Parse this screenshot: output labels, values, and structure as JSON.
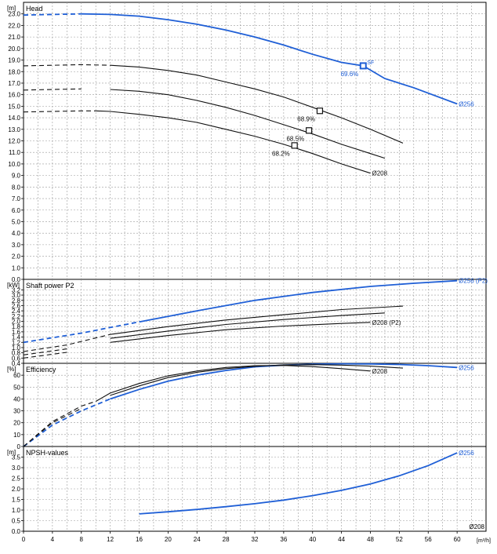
{
  "chart_data": {
    "type": "line",
    "x_axis": {
      "range": [
        0,
        64
      ],
      "ticks": [
        0,
        4,
        8,
        12,
        16,
        20,
        24,
        28,
        32,
        36,
        40,
        44,
        48,
        52,
        56,
        60
      ],
      "unit_label": "[m³/h]"
    },
    "colors": {
      "blue": "#1f5fd6",
      "black": "#111111",
      "grid": "#9a9a9a"
    },
    "panels": [
      {
        "id": "head",
        "title": "Head",
        "unit": "[m]",
        "ylim": [
          0,
          24
        ],
        "ticks": [
          0.0,
          1.0,
          2.0,
          3.0,
          4.0,
          5.0,
          6.0,
          7.0,
          8.0,
          9.0,
          10.0,
          11.0,
          12.0,
          13.0,
          14.0,
          15.0,
          16.0,
          17.0,
          18.0,
          19.0,
          20.0,
          21.0,
          22.0,
          23.0
        ],
        "series": [
          {
            "name": "Ø256",
            "color": "blue",
            "dash_until": 8,
            "x": [
              0,
              4,
              8,
              12,
              16,
              20,
              24,
              28,
              32,
              36,
              40,
              44,
              47,
              50,
              54,
              60
            ],
            "y": [
              22.9,
              22.95,
              23.0,
              22.95,
              22.8,
              22.5,
              22.1,
              21.6,
              21.0,
              20.3,
              19.5,
              18.8,
              18.5,
              17.4,
              16.6,
              15.2
            ]
          },
          {
            "name": "",
            "color": "black",
            "dash_until": 12,
            "x": [
              0,
              4,
              8,
              12,
              16,
              20,
              24,
              28,
              32,
              36,
              40,
              44,
              48,
              52.5
            ],
            "y": [
              18.5,
              18.55,
              18.6,
              18.55,
              18.4,
              18.1,
              17.7,
              17.1,
              16.5,
              15.8,
              14.9,
              14.0,
              13.0,
              11.8
            ]
          },
          {
            "name": "",
            "color": "black",
            "dash_until": 11,
            "x": [
              0,
              4,
              8,
              12,
              16,
              20,
              24,
              28,
              32,
              36,
              40,
              44,
              48,
              50
            ],
            "y": [
              16.4,
              16.45,
              16.5,
              16.45,
              16.3,
              16.0,
              15.5,
              14.9,
              14.2,
              13.4,
              12.6,
              11.7,
              10.9,
              10.5
            ]
          },
          {
            "name": "Ø208",
            "color": "black",
            "dash_until": 10,
            "x": [
              0,
              4,
              8,
              10,
              12,
              16,
              20,
              24,
              28,
              32,
              36,
              40,
              44,
              48
            ],
            "y": [
              14.5,
              14.55,
              14.6,
              14.6,
              14.55,
              14.3,
              14.0,
              13.6,
              13.0,
              12.4,
              11.7,
              10.9,
              10.0,
              9.2
            ]
          }
        ],
        "markers": [
          {
            "x": 47,
            "y": 18.5,
            "label": "69.6%",
            "color": "blue",
            "tag": "SF"
          },
          {
            "x": 41,
            "y": 14.6,
            "label": "68.9%",
            "color": "black"
          },
          {
            "x": 39.5,
            "y": 12.9,
            "label": "68.5%",
            "color": "black"
          },
          {
            "x": 37.5,
            "y": 11.6,
            "label": "68.2%",
            "color": "black"
          }
        ]
      },
      {
        "id": "power",
        "title": "Shaft power P2",
        "unit": "[kW]",
        "ylim": [
          0.4,
          3.6
        ],
        "ticks": [
          0.4,
          0.6,
          0.8,
          1.0,
          1.2,
          1.4,
          1.6,
          1.8,
          2.0,
          2.2,
          2.4,
          2.6,
          2.8,
          3.0,
          3.2
        ],
        "series": [
          {
            "name": "Ø256 (P2)",
            "color": "blue",
            "dash_until": 16,
            "x": [
              0,
              8,
              16,
              24,
              32,
              40,
              48,
              54,
              60
            ],
            "y": [
              1.2,
              1.55,
              1.98,
              2.4,
              2.8,
              3.1,
              3.33,
              3.45,
              3.55
            ]
          },
          {
            "name": "",
            "color": "black",
            "dash_until": 12,
            "x": [
              0,
              6,
              12,
              20,
              28,
              36,
              44,
              52.5
            ],
            "y": [
              0.85,
              1.1,
              1.5,
              1.8,
              2.05,
              2.25,
              2.45,
              2.58
            ]
          },
          {
            "name": "",
            "color": "black",
            "dash_until": 11,
            "x": [
              0,
              6,
              12,
              20,
              28,
              36,
              44,
              50
            ],
            "y": [
              0.72,
              0.95,
              1.35,
              1.63,
              1.88,
              2.07,
              2.22,
              2.32
            ]
          },
          {
            "name": "Ø208 (P2)",
            "color": "black",
            "dash_until": 10,
            "x": [
              0,
              6,
              12,
              20,
              28,
              36,
              44,
              48
            ],
            "y": [
              0.6,
              0.82,
              1.2,
              1.46,
              1.68,
              1.82,
              1.92,
              1.96
            ]
          }
        ]
      },
      {
        "id": "efficiency",
        "title": "Efficiency",
        "unit": "[%]",
        "ylim": [
          0,
          70
        ],
        "ticks": [
          0,
          10,
          20,
          30,
          40,
          50,
          60
        ],
        "series": [
          {
            "name": "Ø256",
            "color": "blue",
            "dash_until": 12,
            "x": [
              0,
              4,
              8,
              12,
              16,
              20,
              24,
              28,
              32,
              36,
              40,
              44,
              48,
              52,
              56,
              60
            ],
            "y": [
              0,
              18,
              30,
              40,
              48,
              55,
              60,
              64,
              67,
              68.5,
              69.2,
              69.6,
              69.5,
              69,
              68,
              66.5
            ]
          },
          {
            "name": "",
            "color": "black",
            "dash_until": 11,
            "x": [
              0,
              4,
              8,
              12,
              16,
              20,
              24,
              28,
              32,
              36,
              40,
              44,
              48,
              52.5
            ],
            "y": [
              0,
              20,
              32,
              43,
              51,
              58,
              62.5,
              65.5,
              67.5,
              68.6,
              68.9,
              68.5,
              67.6,
              66
            ]
          },
          {
            "name": "Ø208",
            "color": "black",
            "dash_until": 10,
            "x": [
              0,
              4,
              8,
              10,
              12,
              16,
              20,
              24,
              28,
              32,
              36,
              40,
              44,
              48
            ],
            "y": [
              0,
              21,
              34,
              38,
              45,
              53,
              59.5,
              63.5,
              66.5,
              68,
              68.2,
              67.2,
              65.5,
              63.5
            ]
          }
        ]
      },
      {
        "id": "npsh",
        "title": "NPSH-values",
        "unit": "[m]",
        "ylim": [
          0,
          4.0
        ],
        "ticks": [
          0.0,
          0.5,
          1.0,
          1.5,
          2.0,
          2.5,
          3.0,
          3.5
        ],
        "series": [
          {
            "name": "Ø256",
            "color": "blue",
            "dash_until": 0,
            "x": [
              16,
              20,
              24,
              28,
              32,
              36,
              40,
              44,
              48,
              52,
              56,
              60
            ],
            "y": [
              0.82,
              0.92,
              1.03,
              1.16,
              1.3,
              1.47,
              1.68,
              1.93,
              2.23,
              2.62,
              3.1,
              3.7
            ]
          }
        ],
        "footer_label": "Ø208"
      }
    ]
  }
}
